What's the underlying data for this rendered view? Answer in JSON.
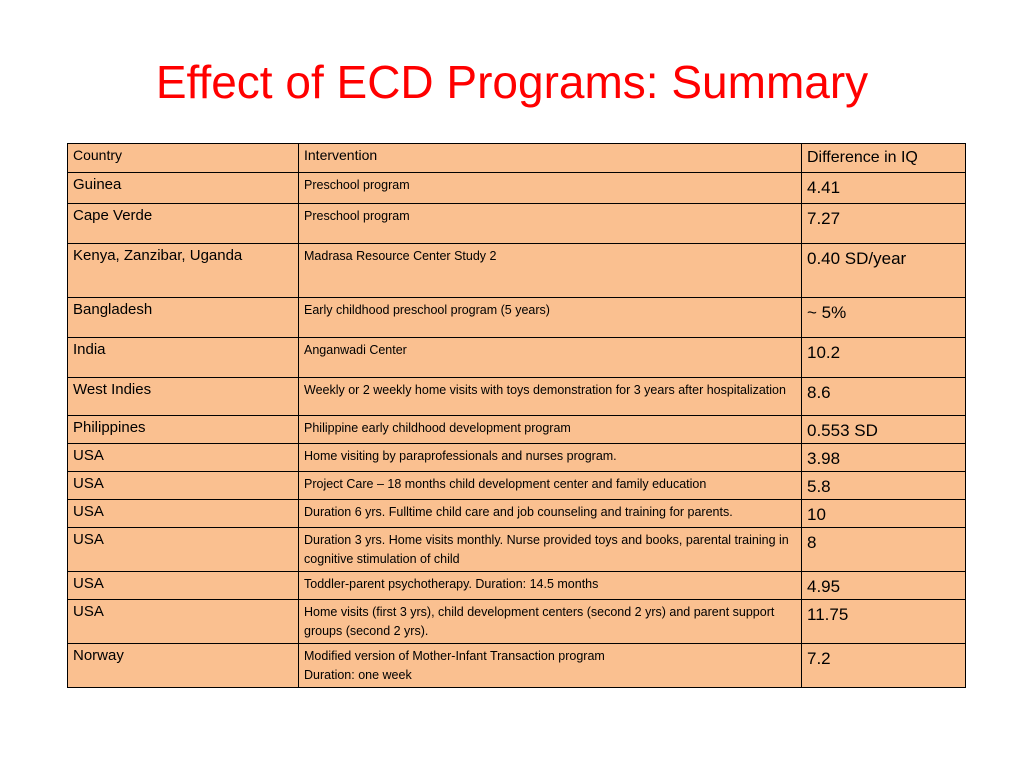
{
  "title": "Effect of ECD Programs: Summary",
  "table": {
    "headers": {
      "country": "Country",
      "intervention": "Intervention",
      "difference": "Difference in IQ"
    },
    "rows": [
      {
        "country": "Guinea",
        "intervention": "Preschool program",
        "difference": "4.41"
      },
      {
        "country": "Cape Verde",
        "intervention": "Preschool program",
        "difference": "7.27"
      },
      {
        "country": "Kenya, Zanzibar, Uganda",
        "intervention": "Madrasa Resource Center Study 2",
        "difference": "0.40 SD/year"
      },
      {
        "country": "Bangladesh",
        "intervention": "Early childhood preschool program (5 years)",
        "difference": "~ 5%"
      },
      {
        "country": "India",
        "intervention": "Anganwadi Center",
        "difference": "10.2"
      },
      {
        "country": "West Indies",
        "intervention": "Weekly or 2 weekly home visits with toys demonstration for 3 years after hospitalization",
        "difference": "8.6"
      },
      {
        "country": "Philippines",
        "intervention": "Philippine early childhood development program",
        "difference": "0.553 SD"
      },
      {
        "country": "USA",
        "intervention": "Home visiting by paraprofessionals and nurses program.",
        "difference": "3.98"
      },
      {
        "country": "USA",
        "intervention": "Project Care – 18 months child development center and family education",
        "difference": "5.8"
      },
      {
        "country": "USA",
        "intervention": "Duration 6 yrs. Fulltime child care and job counseling and training for parents.",
        "difference": "10"
      },
      {
        "country": "USA",
        "intervention": "Duration 3 yrs. Home visits monthly. Nurse provided toys and books, parental training in cognitive stimulation of child",
        "difference": "8"
      },
      {
        "country": "USA",
        "intervention": "Toddler-parent psychotherapy. Duration: 14.5 months",
        "difference": "4.95"
      },
      {
        "country": "USA",
        "intervention": "Home visits (first 3 yrs), child development centers (second 2 yrs) and parent support groups (second 2 yrs).",
        "difference": "11.75"
      },
      {
        "country": "Norway",
        "intervention": "Modified version of Mother-Infant Transaction program",
        "intervention_line2": "Duration: one week",
        "difference": "7.2"
      }
    ]
  }
}
